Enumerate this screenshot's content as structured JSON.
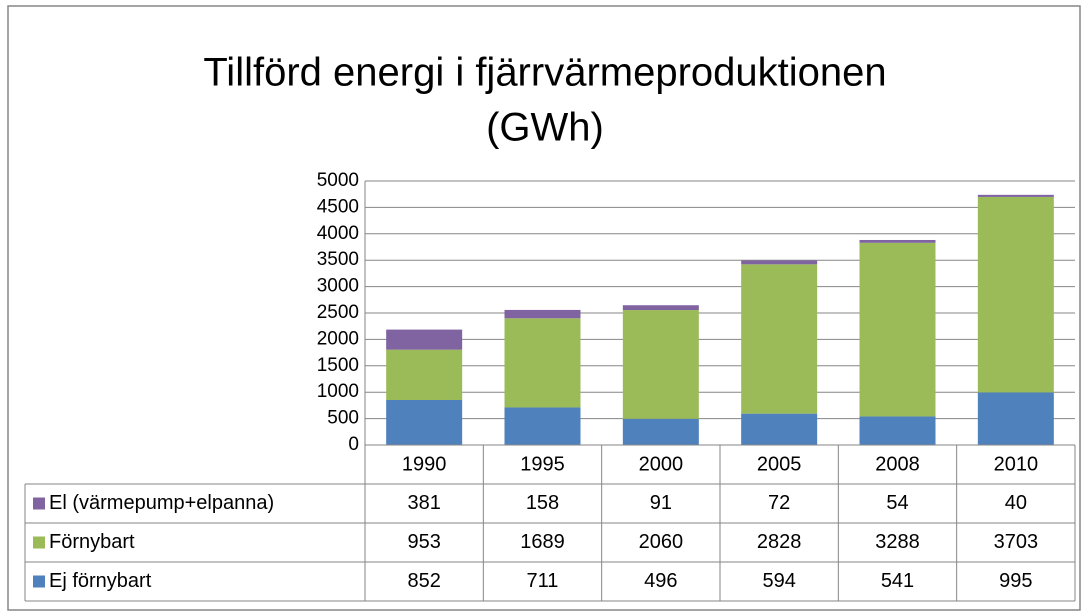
{
  "chart_data": {
    "type": "bar",
    "stacked": true,
    "title_lines": [
      "Tillförd energi i fjärrvärmeproduktionen",
      "(GWh)"
    ],
    "categories": [
      "1990",
      "1995",
      "2000",
      "2005",
      "2008",
      "2010"
    ],
    "series": [
      {
        "name": "Ej förnybart",
        "color": "#4f81bd",
        "values": [
          852,
          711,
          496,
          594,
          541,
          995
        ]
      },
      {
        "name": "Förnybart",
        "color": "#9bbb59",
        "values": [
          953,
          1689,
          2060,
          2828,
          3288,
          3703
        ]
      },
      {
        "name": "El (värmepump+elpanna)",
        "color": "#8064a2",
        "values": [
          381,
          158,
          91,
          72,
          54,
          40
        ]
      }
    ],
    "ylim": [
      0,
      5000
    ],
    "yticks": [
      0,
      500,
      1000,
      1500,
      2000,
      2500,
      3000,
      3500,
      4000,
      4500,
      5000
    ],
    "grid": true,
    "data_table": true
  }
}
